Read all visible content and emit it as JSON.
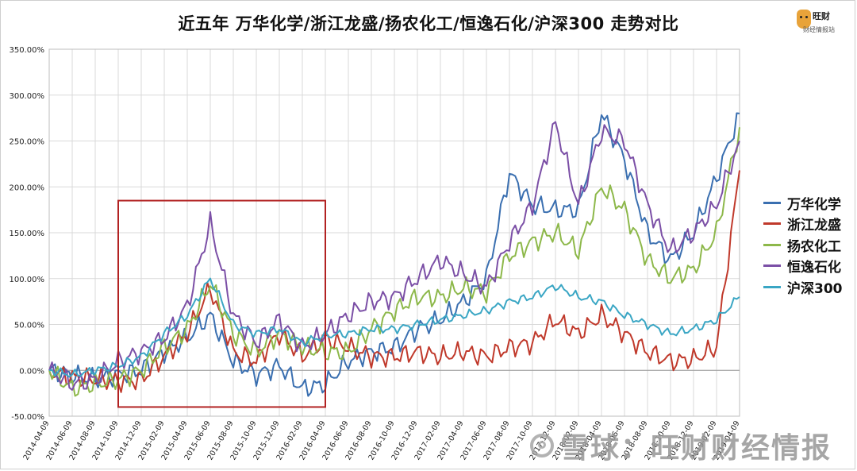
{
  "chart_data": {
    "type": "line",
    "title": "近五年 万华化学/浙江龙盛/扬农化工/恒逸石化/沪深300 走势对比",
    "xlabel": "",
    "ylabel": "",
    "ylim": [
      -50,
      350
    ],
    "yticks": [
      "-50.00%",
      "0.00%",
      "50.00%",
      "100.00%",
      "150.00%",
      "200.00%",
      "250.00%",
      "300.00%",
      "350.00%"
    ],
    "xticks": [
      "2014-04-09",
      "2014-06-09",
      "2014-08-09",
      "2014-10-09",
      "2014-12-09",
      "2015-02-09",
      "2015-04-09",
      "2015-06-09",
      "2015-08-09",
      "2015-10-09",
      "2015-12-09",
      "2016-02-09",
      "2016-04-09",
      "2016-06-09",
      "2016-08-09",
      "2016-10-09",
      "2016-12-09",
      "2017-02-09",
      "2017-04-09",
      "2017-06-09",
      "2017-08-09",
      "2017-10-09",
      "2017-12-09",
      "2018-02-09",
      "2018-04-09",
      "2018-06-09",
      "2018-08-09",
      "2018-10-09",
      "2018-12-09",
      "2019-02-09",
      "2019-04-09"
    ],
    "grid": true,
    "legend_position": "right",
    "highlight_box": {
      "x_start": "2014-10-09",
      "x_end": "2016-04-09",
      "y_min": -40,
      "y_max": 185,
      "color": "#b22222"
    },
    "x": [
      0,
      1,
      2,
      3,
      4,
      5,
      6,
      7,
      8,
      9,
      10,
      11,
      12,
      13,
      14,
      15,
      16,
      17,
      18,
      19,
      20,
      21,
      22,
      23,
      24,
      25,
      26,
      27,
      28,
      29,
      30
    ],
    "series": [
      {
        "name": "万华化学",
        "color": "#3a6fb0",
        "values": [
          0,
          -5,
          -10,
          -5,
          0,
          20,
          35,
          60,
          10,
          -5,
          5,
          -20,
          -15,
          10,
          20,
          25,
          45,
          55,
          75,
          100,
          215,
          180,
          175,
          175,
          280,
          230,
          150,
          120,
          150,
          210,
          280
        ]
      },
      {
        "name": "浙江龙盛",
        "color": "#c0392b",
        "values": [
          0,
          -8,
          -10,
          -12,
          -10,
          15,
          40,
          90,
          20,
          10,
          40,
          15,
          35,
          25,
          15,
          15,
          20,
          15,
          20,
          15,
          25,
          30,
          55,
          40,
          60,
          40,
          20,
          10,
          12,
          25,
          218
        ]
      },
      {
        "name": "扬农化工",
        "color": "#8db84a",
        "values": [
          0,
          -20,
          -15,
          -10,
          0,
          25,
          45,
          95,
          40,
          20,
          40,
          25,
          20,
          20,
          45,
          65,
          80,
          80,
          90,
          85,
          125,
          140,
          150,
          130,
          200,
          175,
          120,
          100,
          110,
          150,
          265
        ]
      },
      {
        "name": "恒逸石化",
        "color": "#7b4fa6",
        "values": [
          0,
          -15,
          -10,
          10,
          20,
          35,
          70,
          160,
          60,
          30,
          55,
          25,
          40,
          60,
          75,
          80,
          100,
          120,
          105,
          90,
          140,
          180,
          270,
          180,
          260,
          250,
          180,
          130,
          150,
          180,
          250
        ]
      },
      {
        "name": "沪深300",
        "color": "#3aa6c4",
        "values": [
          0,
          -5,
          0,
          5,
          15,
          40,
          60,
          100,
          50,
          40,
          45,
          30,
          38,
          40,
          45,
          45,
          50,
          55,
          60,
          65,
          75,
          80,
          92,
          80,
          75,
          60,
          50,
          40,
          45,
          55,
          80
        ]
      }
    ]
  },
  "watermark": {
    "text": "雪球：旺财财经情报"
  },
  "logo": {
    "name": "旺财",
    "sub": "财经情报站"
  }
}
